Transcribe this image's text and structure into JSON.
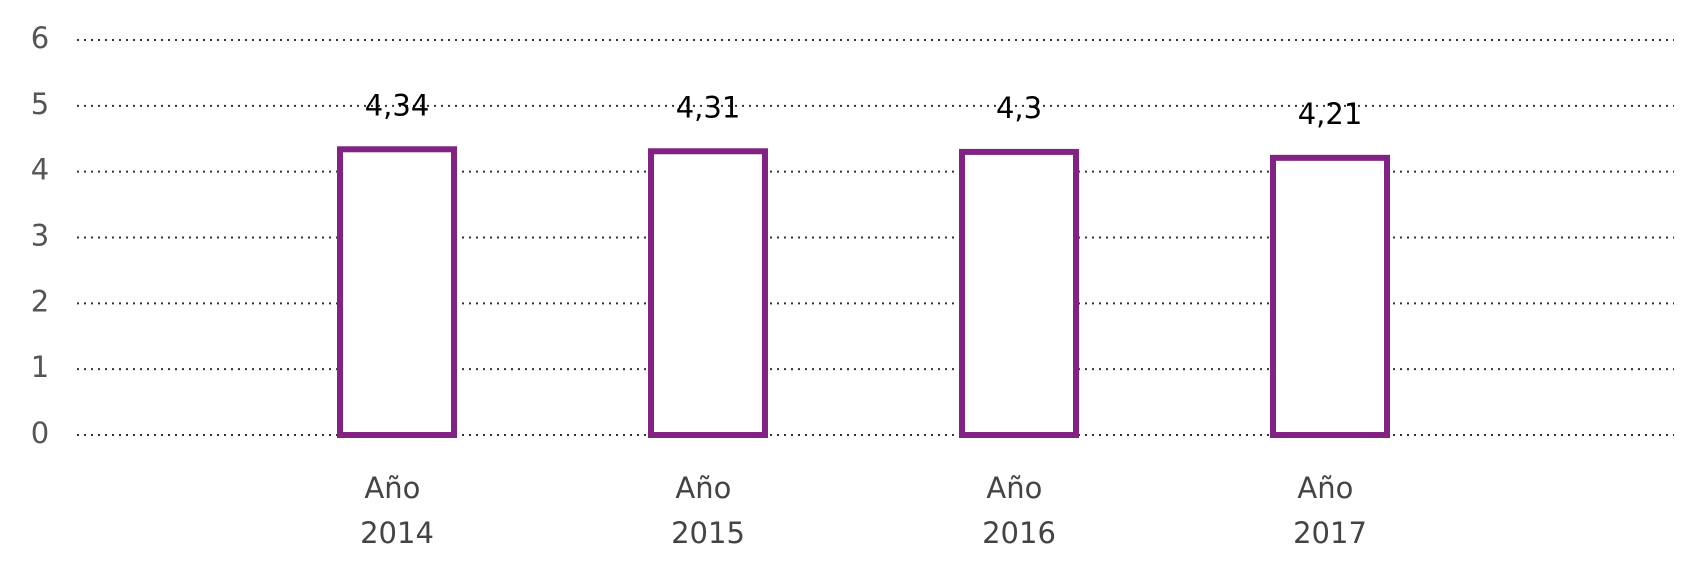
{
  "chart_data": {
    "type": "bar",
    "categories": [
      "Año 2014",
      "Año 2015",
      "Año 2016",
      "Año 2017"
    ],
    "values": [
      4.34,
      4.31,
      4.3,
      4.21
    ],
    "value_labels": [
      "4,34",
      "4,31",
      "4,3",
      "4,21"
    ],
    "color": "#822282",
    "ylim": [
      0,
      6
    ],
    "yticks": [
      0,
      1,
      2,
      3,
      4,
      5,
      6
    ],
    "grid": true
  }
}
